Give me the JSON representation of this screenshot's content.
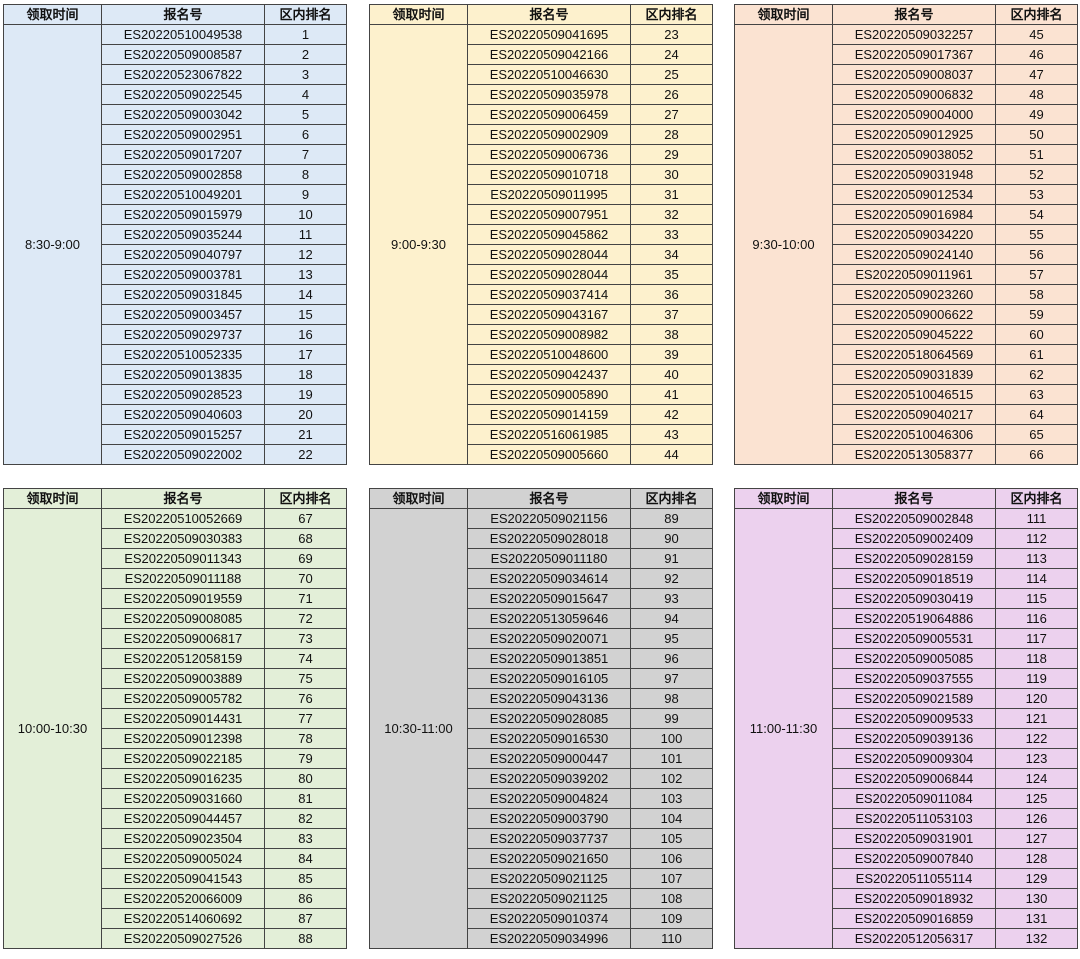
{
  "tables": [
    {
      "headers": [
        "领取时间",
        "报名号",
        "区内排名"
      ],
      "time": "8:30-9:00",
      "rows": [
        [
          "ES20220510049538",
          1
        ],
        [
          "ES20220509008587",
          2
        ],
        [
          "ES20220523067822",
          3
        ],
        [
          "ES20220509022545",
          4
        ],
        [
          "ES20220509003042",
          5
        ],
        [
          "ES20220509002951",
          6
        ],
        [
          "ES20220509017207",
          7
        ],
        [
          "ES20220509002858",
          8
        ],
        [
          "ES20220510049201",
          9
        ],
        [
          "ES20220509015979",
          10
        ],
        [
          "ES20220509035244",
          11
        ],
        [
          "ES20220509040797",
          12
        ],
        [
          "ES20220509003781",
          13
        ],
        [
          "ES20220509031845",
          14
        ],
        [
          "ES20220509003457",
          15
        ],
        [
          "ES20220509029737",
          16
        ],
        [
          "ES20220510052335",
          17
        ],
        [
          "ES20220509013835",
          18
        ],
        [
          "ES20220509028523",
          19
        ],
        [
          "ES20220509040603",
          20
        ],
        [
          "ES20220509015257",
          21
        ],
        [
          "ES20220509022002",
          22
        ]
      ]
    },
    {
      "headers": [
        "领取时间",
        "报名号",
        "区内排名"
      ],
      "time": "9:00-9:30",
      "rows": [
        [
          "ES20220509041695",
          23
        ],
        [
          "ES20220509042166",
          24
        ],
        [
          "ES20220510046630",
          25
        ],
        [
          "ES20220509035978",
          26
        ],
        [
          "ES20220509006459",
          27
        ],
        [
          "ES20220509002909",
          28
        ],
        [
          "ES20220509006736",
          29
        ],
        [
          "ES20220509010718",
          30
        ],
        [
          "ES20220509011995",
          31
        ],
        [
          "ES20220509007951",
          32
        ],
        [
          "ES20220509045862",
          33
        ],
        [
          "ES20220509028044",
          34
        ],
        [
          "ES20220509028044",
          35
        ],
        [
          "ES20220509037414",
          36
        ],
        [
          "ES20220509043167",
          37
        ],
        [
          "ES20220509008982",
          38
        ],
        [
          "ES20220510048600",
          39
        ],
        [
          "ES20220509042437",
          40
        ],
        [
          "ES20220509005890",
          41
        ],
        [
          "ES20220509014159",
          42
        ],
        [
          "ES20220516061985",
          43
        ],
        [
          "ES20220509005660",
          44
        ]
      ]
    },
    {
      "headers": [
        "领取时间",
        "报名号",
        "区内排名"
      ],
      "time": "9:30-10:00",
      "rows": [
        [
          "ES20220509032257",
          45
        ],
        [
          "ES20220509017367",
          46
        ],
        [
          "ES20220509008037",
          47
        ],
        [
          "ES20220509006832",
          48
        ],
        [
          "ES20220509004000",
          49
        ],
        [
          "ES20220509012925",
          50
        ],
        [
          "ES20220509038052",
          51
        ],
        [
          "ES20220509031948",
          52
        ],
        [
          "ES20220509012534",
          53
        ],
        [
          "ES20220509016984",
          54
        ],
        [
          "ES20220509034220",
          55
        ],
        [
          "ES20220509024140",
          56
        ],
        [
          "ES20220509011961",
          57
        ],
        [
          "ES20220509023260",
          58
        ],
        [
          "ES20220509006622",
          59
        ],
        [
          "ES20220509045222",
          60
        ],
        [
          "ES20220518064569",
          61
        ],
        [
          "ES20220509031839",
          62
        ],
        [
          "ES20220510046515",
          63
        ],
        [
          "ES20220509040217",
          64
        ],
        [
          "ES20220510046306",
          65
        ],
        [
          "ES20220513058377",
          66
        ]
      ]
    },
    {
      "headers": [
        "领取时间",
        "报名号",
        "区内排名"
      ],
      "time": "10:00-10:30",
      "rows": [
        [
          "ES20220510052669",
          67
        ],
        [
          "ES20220509030383",
          68
        ],
        [
          "ES20220509011343",
          69
        ],
        [
          "ES20220509011188",
          70
        ],
        [
          "ES20220509019559",
          71
        ],
        [
          "ES20220509008085",
          72
        ],
        [
          "ES20220509006817",
          73
        ],
        [
          "ES20220512058159",
          74
        ],
        [
          "ES20220509003889",
          75
        ],
        [
          "ES20220509005782",
          76
        ],
        [
          "ES20220509014431",
          77
        ],
        [
          "ES20220509012398",
          78
        ],
        [
          "ES20220509022185",
          79
        ],
        [
          "ES20220509016235",
          80
        ],
        [
          "ES20220509031660",
          81
        ],
        [
          "ES20220509044457",
          82
        ],
        [
          "ES20220509023504",
          83
        ],
        [
          "ES20220509005024",
          84
        ],
        [
          "ES20220509041543",
          85
        ],
        [
          "ES20220520066009",
          86
        ],
        [
          "ES20220514060692",
          87
        ],
        [
          "ES20220509027526",
          88
        ]
      ]
    },
    {
      "headers": [
        "领取时间",
        "报名号",
        "区内排名"
      ],
      "time": "10:30-11:00",
      "rows": [
        [
          "ES20220509021156",
          89
        ],
        [
          "ES20220509028018",
          90
        ],
        [
          "ES20220509011180",
          91
        ],
        [
          "ES20220509034614",
          92
        ],
        [
          "ES20220509015647",
          93
        ],
        [
          "ES20220513059646",
          94
        ],
        [
          "ES20220509020071",
          95
        ],
        [
          "ES20220509013851",
          96
        ],
        [
          "ES20220509016105",
          97
        ],
        [
          "ES20220509043136",
          98
        ],
        [
          "ES20220509028085",
          99
        ],
        [
          "ES20220509016530",
          100
        ],
        [
          "ES20220509000447",
          101
        ],
        [
          "ES20220509039202",
          102
        ],
        [
          "ES20220509004824",
          103
        ],
        [
          "ES20220509003790",
          104
        ],
        [
          "ES20220509037737",
          105
        ],
        [
          "ES20220509021650",
          106
        ],
        [
          "ES20220509021125",
          107
        ],
        [
          "ES20220509021125",
          108
        ],
        [
          "ES20220509010374",
          109
        ],
        [
          "ES20220509034996",
          110
        ]
      ]
    },
    {
      "headers": [
        "领取时间",
        "报名号",
        "区内排名"
      ],
      "time": "11:00-11:30",
      "rows": [
        [
          "ES20220509002848",
          111
        ],
        [
          "ES20220509002409",
          112
        ],
        [
          "ES20220509028159",
          113
        ],
        [
          "ES20220509018519",
          114
        ],
        [
          "ES20220509030419",
          115
        ],
        [
          "ES20220519064886",
          116
        ],
        [
          "ES20220509005531",
          117
        ],
        [
          "ES20220509005085",
          118
        ],
        [
          "ES20220509037555",
          119
        ],
        [
          "ES20220509021589",
          120
        ],
        [
          "ES20220509009533",
          121
        ],
        [
          "ES20220509039136",
          122
        ],
        [
          "ES20220509009304",
          123
        ],
        [
          "ES20220509006844",
          124
        ],
        [
          "ES20220509011084",
          125
        ],
        [
          "ES20220511053103",
          126
        ],
        [
          "ES20220509031901",
          127
        ],
        [
          "ES20220509007840",
          128
        ],
        [
          "ES20220511055114",
          129
        ],
        [
          "ES20220509018932",
          130
        ],
        [
          "ES20220509016859",
          131
        ],
        [
          "ES20220512056317",
          132
        ]
      ]
    }
  ]
}
